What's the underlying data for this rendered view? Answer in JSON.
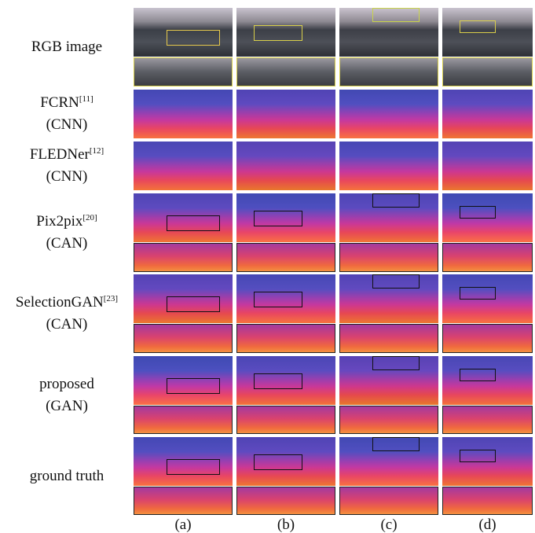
{
  "rows": [
    {
      "line1": "RGB image"
    },
    {
      "line1": "FCRN",
      "ref": "[11]",
      "line2": "(CNN)"
    },
    {
      "line1": "FLEDNer",
      "ref": "[12]",
      "line2": "(CNN)"
    },
    {
      "line1": "Pix2pix",
      "ref": "[20]",
      "line2": "(CAN)"
    },
    {
      "line1": "SelectionGAN",
      "ref": "[23]",
      "line2": "(CAN)"
    },
    {
      "line1": "proposed",
      "line2": "(GAN)"
    },
    {
      "line1": "ground truth"
    }
  ],
  "columns": [
    "(a)",
    "(b)",
    "(c)",
    "(d)"
  ]
}
